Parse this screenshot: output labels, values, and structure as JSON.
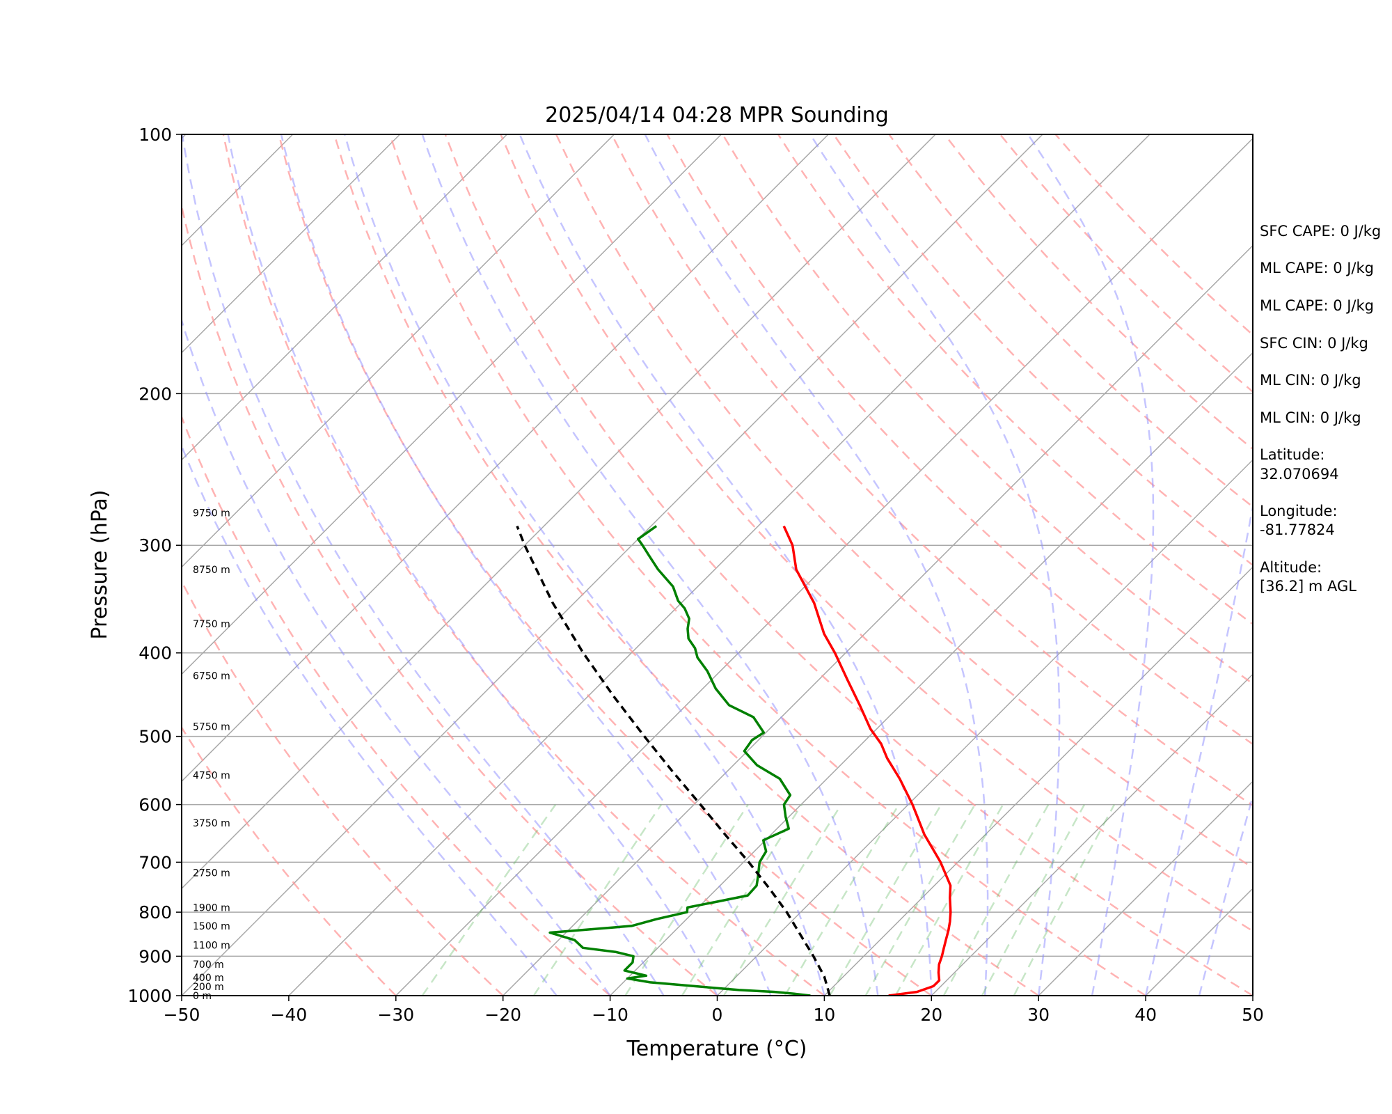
{
  "chart_data": {
    "type": "line",
    "title": "2025/04/14 04:28 MPR Sounding",
    "xlabel": "Temperature (°C)",
    "ylabel": "Pressure (hPa)",
    "xlim": [
      -50,
      50
    ],
    "ylim": [
      1000,
      100
    ],
    "y_scale": "log",
    "skew": true,
    "grid": true,
    "x_ticks": [
      -50,
      -40,
      -30,
      -20,
      -10,
      0,
      10,
      20,
      30,
      40,
      50
    ],
    "x_tick_labels": [
      "−50",
      "−40",
      "−30",
      "−20",
      "−10",
      "0",
      "10",
      "20",
      "30",
      "40",
      "50"
    ],
    "y_ticks": [
      1000,
      900,
      800,
      700,
      600,
      500,
      400,
      300,
      200,
      100
    ],
    "y_tick_labels": [
      "1000",
      "900",
      "800",
      "700",
      "600",
      "500",
      "400",
      "300",
      "200",
      "100"
    ],
    "series": [
      {
        "role": "temperature",
        "color": "#ff0000",
        "points": [
          [
            1000,
            16.0
          ],
          [
            990,
            18.3
          ],
          [
            975,
            19.3
          ],
          [
            960,
            19.3
          ],
          [
            940,
            18.5
          ],
          [
            920,
            17.8
          ],
          [
            900,
            17.3
          ],
          [
            880,
            16.7
          ],
          [
            860,
            16.1
          ],
          [
            840,
            15.5
          ],
          [
            820,
            14.8
          ],
          [
            800,
            14.0
          ],
          [
            770,
            12.6
          ],
          [
            745,
            11.5
          ],
          [
            720,
            9.8
          ],
          [
            700,
            8.4
          ],
          [
            680,
            6.8
          ],
          [
            650,
            4.3
          ],
          [
            620,
            2.0
          ],
          [
            600,
            0.4
          ],
          [
            560,
            -3.2
          ],
          [
            530,
            -6.3
          ],
          [
            510,
            -8.2
          ],
          [
            490,
            -10.6
          ],
          [
            460,
            -13.8
          ],
          [
            430,
            -17.3
          ],
          [
            400,
            -21.0
          ],
          [
            380,
            -23.8
          ],
          [
            350,
            -27.6
          ],
          [
            320,
            -32.4
          ],
          [
            300,
            -35.0
          ],
          [
            285,
            -37.6
          ]
        ]
      },
      {
        "role": "dewpoint",
        "color": "#008000",
        "points": [
          [
            1000,
            8.7
          ],
          [
            995,
            7.0
          ],
          [
            990,
            5.0
          ],
          [
            985,
            1.5
          ],
          [
            975,
            -3.0
          ],
          [
            965,
            -7.5
          ],
          [
            955,
            -10.0
          ],
          [
            948,
            -8.5
          ],
          [
            935,
            -11.0
          ],
          [
            915,
            -11.0
          ],
          [
            900,
            -11.5
          ],
          [
            890,
            -13.5
          ],
          [
            880,
            -17.0
          ],
          [
            862,
            -18.5
          ],
          [
            845,
            -21.5
          ],
          [
            830,
            -14.5
          ],
          [
            815,
            -12.8
          ],
          [
            800,
            -10.6
          ],
          [
            790,
            -11.0
          ],
          [
            778,
            -8.8
          ],
          [
            765,
            -6.5
          ],
          [
            745,
            -6.6
          ],
          [
            730,
            -7.2
          ],
          [
            700,
            -8.5
          ],
          [
            680,
            -8.9
          ],
          [
            660,
            -10.2
          ],
          [
            640,
            -8.9
          ],
          [
            620,
            -10.3
          ],
          [
            600,
            -11.6
          ],
          [
            585,
            -11.9
          ],
          [
            560,
            -14.4
          ],
          [
            540,
            -17.8
          ],
          [
            520,
            -20.3
          ],
          [
            505,
            -20.6
          ],
          [
            495,
            -20.2
          ],
          [
            475,
            -22.6
          ],
          [
            460,
            -26.0
          ],
          [
            440,
            -28.8
          ],
          [
            420,
            -31.2
          ],
          [
            405,
            -33.4
          ],
          [
            395,
            -34.5
          ],
          [
            385,
            -36.0
          ],
          [
            375,
            -37.0
          ],
          [
            365,
            -37.8
          ],
          [
            355,
            -39.2
          ],
          [
            348,
            -40.5
          ],
          [
            335,
            -42.3
          ],
          [
            320,
            -45.3
          ],
          [
            308,
            -47.5
          ],
          [
            300,
            -49.0
          ],
          [
            295,
            -50.0
          ],
          [
            285,
            -49.5
          ]
        ]
      },
      {
        "role": "parcel",
        "color": "#000000",
        "style": "dashed",
        "points": [
          [
            1000,
            10.5
          ],
          [
            950,
            8.2
          ],
          [
            900,
            5.3
          ],
          [
            850,
            2.1
          ],
          [
            800,
            -1.3
          ],
          [
            750,
            -5.2
          ],
          [
            700,
            -9.5
          ],
          [
            650,
            -14.3
          ],
          [
            600,
            -19.4
          ],
          [
            550,
            -25.0
          ],
          [
            500,
            -31.0
          ],
          [
            450,
            -37.5
          ],
          [
            400,
            -44.5
          ],
          [
            350,
            -52.0
          ],
          [
            300,
            -60.0
          ],
          [
            285,
            -62.5
          ]
        ]
      }
    ],
    "height_labels": [
      "0 m",
      "200 m",
      "400 m",
      "700 m",
      "1100 m",
      "1500 m",
      "1900 m",
      "2750 m",
      "3750 m",
      "4750 m",
      "5750 m",
      "6750 m",
      "7750 m",
      "8750 m",
      "9750 m"
    ],
    "height_pressures": [
      1000,
      976,
      953,
      920,
      874,
      830,
      790,
      720,
      630,
      555,
      487,
      425,
      370,
      320,
      275
    ],
    "dry_adiabat_thetas_c": [
      -30,
      -20,
      -10,
      0,
      10,
      20,
      30,
      40,
      50,
      60,
      70,
      80,
      90,
      100,
      110,
      120,
      130,
      140,
      150,
      160
    ],
    "moist_adiabat_start_c": [
      -15,
      -10,
      -5,
      0,
      5,
      10,
      15,
      20,
      25,
      30,
      35,
      40,
      45,
      50
    ],
    "mixing_ratio_g_per_kg": [
      0.4,
      1,
      2,
      3,
      4,
      6,
      8,
      10,
      12,
      16,
      20,
      24
    ]
  },
  "info": [
    "SFC CAPE: 0 J/kg",
    "ML CAPE: 0 J/kg",
    "ML CAPE: 0 J/kg",
    "SFC CIN: 0 J/kg",
    "ML CIN: 0 J/kg",
    "ML CIN: 0 J/kg",
    "Latitude:",
    "32.070694",
    "Longitude:",
    "-81.77824",
    "Altitude:",
    "[36.2] m AGL"
  ],
  "colors": {
    "isotherm": "#a8a8a8",
    "isobar": "#a8a8a8",
    "dry_adiabat": "#ff9a9a",
    "moist_adiabat": "#8c8cff",
    "mixing_ratio": "#5fb85f"
  }
}
